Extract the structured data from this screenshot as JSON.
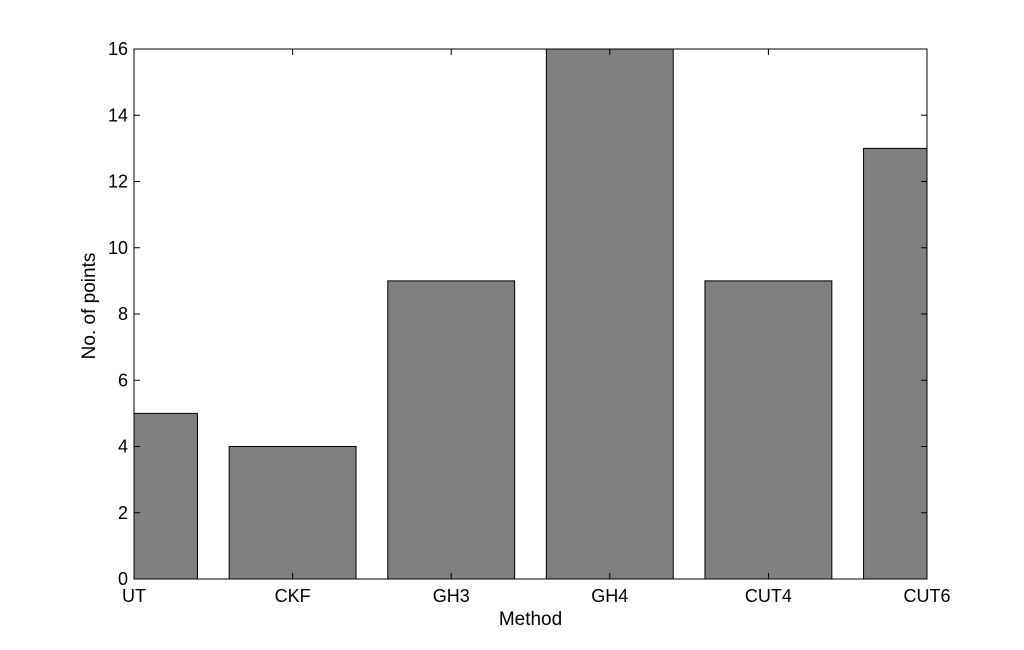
{
  "chart_data": {
    "type": "bar",
    "title": "",
    "xlabel": "Method",
    "ylabel": "No. of points",
    "categories": [
      "UT",
      "CKF",
      "GH3",
      "GH4",
      "CUT4",
      "CUT6"
    ],
    "values": [
      5,
      4,
      9,
      16,
      9,
      13
    ],
    "ylim": [
      0,
      16
    ],
    "yticks": [
      0,
      2,
      4,
      6,
      8,
      10,
      12,
      14,
      16
    ],
    "ytick_labels": [
      "0",
      "2",
      "4",
      "6",
      "8",
      "10",
      "12",
      "14",
      "16"
    ],
    "grid": false,
    "bar_color": "#808080",
    "edge_color": "#000000"
  }
}
